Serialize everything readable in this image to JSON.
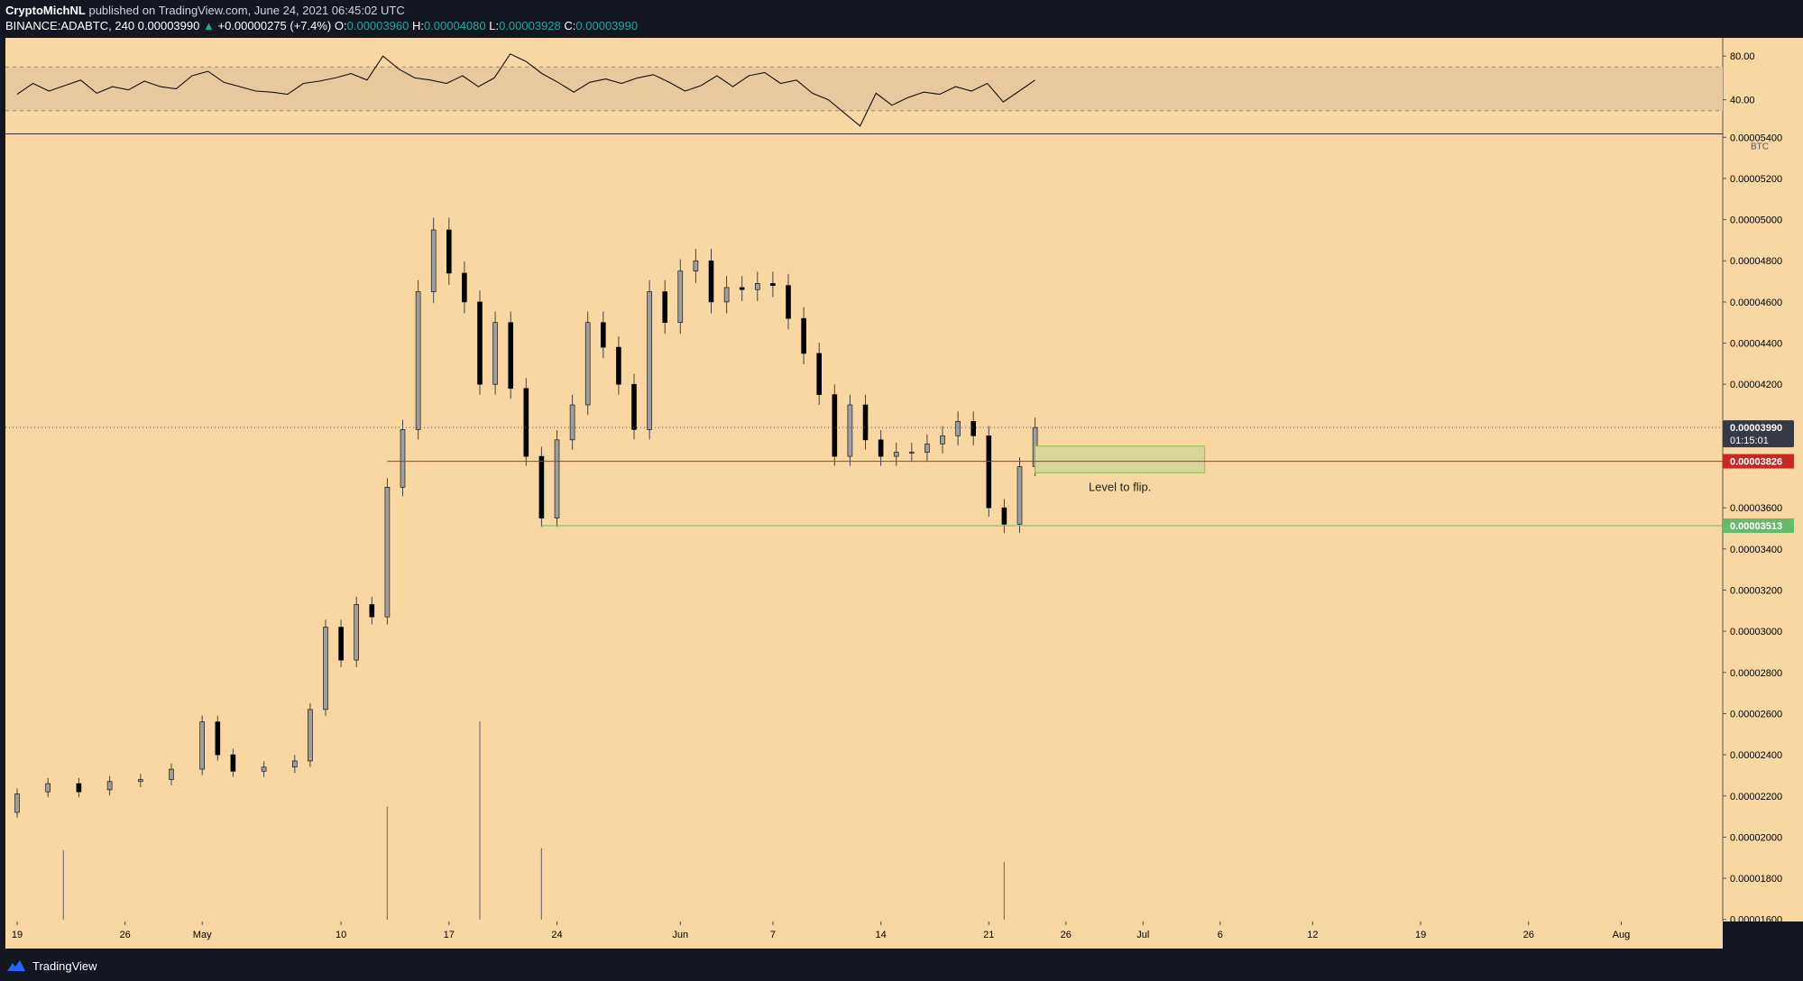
{
  "header": {
    "author": "CryptoMichNL",
    "published": "published on TradingView.com, June 24, 2021 06:45:02 UTC",
    "symbol": "BINANCE:ADABTC, 240",
    "last": "0.00003990",
    "change_arrow": "▲",
    "change": "+0.00000275 (+7.4%)",
    "o_label": "O:",
    "o_value": "0.00003960",
    "h_label": "H:",
    "h_value": "0.00004080",
    "l_label": "L:",
    "l_value": "0.00003928",
    "c_label": "C:",
    "c_value": "0.00003990"
  },
  "footer": {
    "brand": "TradingView"
  },
  "colors": {
    "background": "#f8d7a3",
    "rsi_band": "#e8c89d",
    "candle": "#000000",
    "support_red": "#c62828",
    "support_green": "#66bb6a",
    "zone_fill": "#d7d59a",
    "zone_border": "#8bc34a",
    "last_price_tag": "#363a45"
  },
  "chart_data": {
    "type": "candlestick",
    "symbol": "BINANCE:ADABTC",
    "timeframe": "240",
    "currency": "BTC",
    "x_tick_labels": [
      "19",
      "26",
      "May",
      "10",
      "17",
      "24",
      "Jun",
      "7",
      "14",
      "21",
      "26",
      "Jul",
      "6",
      "12",
      "19",
      "26",
      "Aug"
    ],
    "y_tick_labels": [
      "0.00005400",
      "0.00005200",
      "0.00005000",
      "0.00004800",
      "0.00004600",
      "0.00004400",
      "0.00004200",
      "0.00003600",
      "0.00003400",
      "0.00003200",
      "0.00003000",
      "0.00002800",
      "0.00002600",
      "0.00002400",
      "0.00002200",
      "0.00002000",
      "0.00001800",
      "0.00001600"
    ],
    "ylim": [
      1.59e-05,
      5.41e-05
    ],
    "price_series": [
      [
        "2021-04-19",
        2.12e-05,
        2.21e-05
      ],
      [
        "2021-04-21",
        2.22e-05,
        2.26e-05
      ],
      [
        "2021-04-23",
        2.26e-05,
        2.22e-05
      ],
      [
        "2021-04-25",
        2.23e-05,
        2.27e-05
      ],
      [
        "2021-04-27",
        2.27e-05,
        2.28e-05
      ],
      [
        "2021-04-29",
        2.28e-05,
        2.33e-05
      ],
      [
        "2021-05-01",
        2.33e-05,
        2.56e-05
      ],
      [
        "2021-05-02",
        2.56e-05,
        2.4e-05
      ],
      [
        "2021-05-03",
        2.4e-05,
        2.32e-05
      ],
      [
        "2021-05-05",
        2.32e-05,
        2.34e-05
      ],
      [
        "2021-05-07",
        2.34e-05,
        2.37e-05
      ],
      [
        "2021-05-08",
        2.37e-05,
        2.62e-05
      ],
      [
        "2021-05-09",
        2.62e-05,
        3.02e-05
      ],
      [
        "2021-05-10",
        3.02e-05,
        2.86e-05
      ],
      [
        "2021-05-11",
        2.86e-05,
        3.13e-05
      ],
      [
        "2021-05-12",
        3.13e-05,
        3.07e-05
      ],
      [
        "2021-05-13",
        3.07e-05,
        3.7e-05
      ],
      [
        "2021-05-14",
        3.7e-05,
        3.98e-05
      ],
      [
        "2021-05-15",
        3.98e-05,
        4.65e-05
      ],
      [
        "2021-05-16",
        4.65e-05,
        4.95e-05
      ],
      [
        "2021-05-17",
        4.95e-05,
        4.74e-05
      ],
      [
        "2021-05-18",
        4.74e-05,
        4.6e-05
      ],
      [
        "2021-05-19",
        4.6e-05,
        4.2e-05
      ],
      [
        "2021-05-20",
        4.2e-05,
        4.5e-05
      ],
      [
        "2021-05-21",
        4.5e-05,
        4.18e-05
      ],
      [
        "2021-05-22",
        4.18e-05,
        3.85e-05
      ],
      [
        "2021-05-23",
        3.85e-05,
        3.55e-05
      ],
      [
        "2021-05-24",
        3.55e-05,
        3.93e-05
      ],
      [
        "2021-05-25",
        3.93e-05,
        4.1e-05
      ],
      [
        "2021-05-26",
        4.1e-05,
        4.5e-05
      ],
      [
        "2021-05-27",
        4.5e-05,
        4.38e-05
      ],
      [
        "2021-05-28",
        4.38e-05,
        4.2e-05
      ],
      [
        "2021-05-29",
        4.2e-05,
        3.98e-05
      ],
      [
        "2021-05-30",
        3.98e-05,
        4.65e-05
      ],
      [
        "2021-05-31",
        4.65e-05,
        4.5e-05
      ],
      [
        "2021-06-01",
        4.5e-05,
        4.75e-05
      ],
      [
        "2021-06-02",
        4.75e-05,
        4.8e-05
      ],
      [
        "2021-06-03",
        4.8e-05,
        4.6e-05
      ],
      [
        "2021-06-04",
        4.6e-05,
        4.67e-05
      ],
      [
        "2021-06-05",
        4.67e-05,
        4.66e-05
      ],
      [
        "2021-06-06",
        4.66e-05,
        4.69e-05
      ],
      [
        "2021-06-07",
        4.69e-05,
        4.68e-05
      ],
      [
        "2021-06-08",
        4.68e-05,
        4.52e-05
      ],
      [
        "2021-06-09",
        4.52e-05,
        4.35e-05
      ],
      [
        "2021-06-10",
        4.35e-05,
        4.15e-05
      ],
      [
        "2021-06-11",
        4.15e-05,
        3.85e-05
      ],
      [
        "2021-06-12",
        3.85e-05,
        4.1e-05
      ],
      [
        "2021-06-13",
        4.1e-05,
        3.93e-05
      ],
      [
        "2021-06-14",
        3.93e-05,
        3.85e-05
      ],
      [
        "2021-06-15",
        3.85e-05,
        3.87e-05
      ],
      [
        "2021-06-16",
        3.87e-05,
        3.87e-05
      ],
      [
        "2021-06-17",
        3.87e-05,
        3.91e-05
      ],
      [
        "2021-06-18",
        3.91e-05,
        3.95e-05
      ],
      [
        "2021-06-19",
        3.95e-05,
        4.02e-05
      ],
      [
        "2021-06-20",
        4.02e-05,
        3.95e-05
      ],
      [
        "2021-06-21",
        3.95e-05,
        3.6e-05
      ],
      [
        "2021-06-22",
        3.6e-05,
        3.52e-05
      ],
      [
        "2021-06-23",
        3.52e-05,
        3.8e-05
      ],
      [
        "2021-06-24",
        3.8e-05,
        3.99e-05
      ]
    ],
    "current_price": {
      "value": 3.99e-05,
      "label": "0.00003990",
      "countdown": "01:15:01"
    },
    "levels": [
      {
        "value": 3.826e-05,
        "label": "0.00003826",
        "color": "#c62828"
      },
      {
        "value": 3.513e-05,
        "label": "0.00003513",
        "color": "#66bb6a"
      }
    ],
    "zone": {
      "from_date": "2021-06-24",
      "to_date": "2021-07-05",
      "low": 3.77e-05,
      "high": 3.9e-05,
      "text": "Level to flip."
    },
    "volume_spikes": [
      {
        "date": "2021-04-22",
        "relative": 0.35
      },
      {
        "date": "2021-05-13",
        "relative": 0.57
      },
      {
        "date": "2021-05-19",
        "relative": 1.0
      },
      {
        "date": "2021-05-23",
        "relative": 0.36
      },
      {
        "date": "2021-06-22",
        "relative": 0.29
      }
    ],
    "rsi": {
      "tick_labels": [
        "80.00",
        "40.00"
      ],
      "ylim": [
        10,
        95
      ],
      "band": [
        30,
        70
      ],
      "values": [
        45,
        55,
        48,
        53,
        58,
        46,
        52,
        49,
        57,
        52,
        50,
        62,
        66,
        56,
        52,
        48,
        47,
        45,
        55,
        57,
        60,
        64,
        58,
        80,
        68,
        60,
        58,
        55,
        62,
        52,
        60,
        82,
        75,
        64,
        56,
        47,
        56,
        59,
        55,
        60,
        63,
        56,
        48,
        53,
        62,
        52,
        62,
        65,
        55,
        58,
        46,
        40,
        28,
        16,
        46,
        35,
        42,
        47,
        45,
        52,
        48,
        55,
        38,
        48,
        58
      ]
    },
    "grid": false,
    "legend": "none"
  }
}
